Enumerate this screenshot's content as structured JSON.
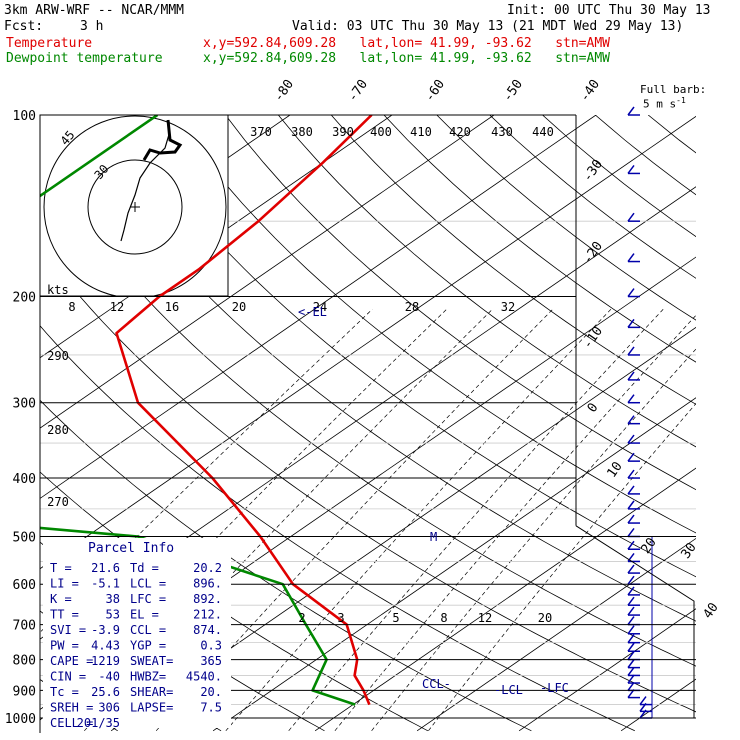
{
  "header": {
    "model": "3km ARW-WRF -- NCAR/MMM",
    "init": "Init: 00 UTC Thu 30 May 13",
    "fcst_label": "Fcst:",
    "fcst_value": "3 h",
    "valid": "Valid: 03 UTC Thu 30 May 13 (21 MDT Wed 29 May 13)"
  },
  "series_legend": [
    {
      "label": "Temperature",
      "info": "x,y=592.84,609.28   lat,lon= 41.99, -93.62   stn=AMW",
      "color": "#e00000"
    },
    {
      "label": "Dewpoint temperature",
      "info": "x,y=592.84,609.28   lat,lon= 41.99, -93.62   stn=AMW",
      "color": "#008800"
    }
  ],
  "barb_key": {
    "line1": "Full barb:",
    "line2": "5 m s",
    "sup": "-1"
  },
  "chart_data": {
    "type": "line",
    "diagram": "skew-T log-p",
    "y_axis": {
      "scale": "log",
      "ticks": [
        100,
        200,
        300,
        400,
        500,
        600,
        700,
        800,
        900,
        1000
      ]
    },
    "isotherm_labels": [
      "-80",
      "-70",
      "-60",
      "-50",
      "-40",
      "-30",
      "-20",
      "-10",
      "0",
      "10",
      "20",
      "30",
      "40"
    ],
    "theta_e_labels": [
      "370",
      "380",
      "390",
      "400",
      "410",
      "420",
      "430",
      "440"
    ],
    "dry_adiabat_labels": [
      "290",
      "280",
      "270"
    ],
    "mixing_ratio_labels": [
      "2",
      "3",
      "5",
      "8",
      "12",
      "20"
    ],
    "series": [
      {
        "name": "Temperature",
        "color": "#e00000",
        "points": [
          [
            100,
            -62
          ],
          [
            120,
            -60
          ],
          [
            150,
            -58
          ],
          [
            180,
            -57
          ],
          [
            200,
            -57
          ],
          [
            230,
            -56
          ],
          [
            300,
            -44
          ],
          [
            400,
            -26
          ],
          [
            500,
            -13
          ],
          [
            600,
            -3
          ],
          [
            700,
            8
          ],
          [
            800,
            14
          ],
          [
            850,
            16
          ],
          [
            900,
            19
          ],
          [
            950,
            21.6
          ]
        ]
      },
      {
        "name": "Dewpoint temperature",
        "color": "#008800",
        "points": [
          [
            100,
            -83
          ],
          [
            150,
            -83
          ],
          [
            200,
            -83
          ],
          [
            250,
            -76
          ],
          [
            300,
            -62
          ],
          [
            330,
            -58
          ],
          [
            380,
            -70
          ],
          [
            420,
            -74
          ],
          [
            450,
            -60
          ],
          [
            500,
            -25
          ],
          [
            600,
            -4
          ],
          [
            700,
            4
          ],
          [
            800,
            11
          ],
          [
            900,
            14
          ],
          [
            950,
            20.2
          ]
        ]
      }
    ],
    "markers": {
      "CCL": "CCL-",
      "LCL": "-LCL",
      "LFC": "-LFC",
      "EL": "<-EL",
      "M": "M"
    },
    "hodograph": {
      "speed_unit": "kts",
      "ring_labels": [
        "30",
        "45"
      ],
      "x_ticks": [
        "8",
        "12",
        "16",
        "20",
        "24",
        "28",
        "32"
      ]
    },
    "parcel_info": {
      "title": "Parcel Info",
      "rows": [
        [
          "T  =",
          "21.6",
          "Td =",
          "20.2"
        ],
        [
          "LI =",
          "-5.1",
          "LCL =",
          "896."
        ],
        [
          "K  =",
          "38",
          "LFC =",
          "892."
        ],
        [
          "TT =",
          "53",
          "EL =",
          "212."
        ],
        [
          "SVI =",
          "-3.9",
          "CCL =",
          "874."
        ],
        [
          "PW =",
          "4.43",
          "YGP =",
          "0.3"
        ],
        [
          "CAPE =",
          "1219",
          "SWEAT=",
          "365"
        ],
        [
          "CIN =",
          "-40",
          "HWBZ=",
          "4540."
        ],
        [
          "Tc =",
          "25.6",
          "SHEAR=",
          "20."
        ],
        [
          "SREH =",
          "306",
          "LAPSE=",
          "7.5"
        ],
        [
          "CELL =",
          "201/35",
          "",
          ""
        ]
      ]
    }
  }
}
